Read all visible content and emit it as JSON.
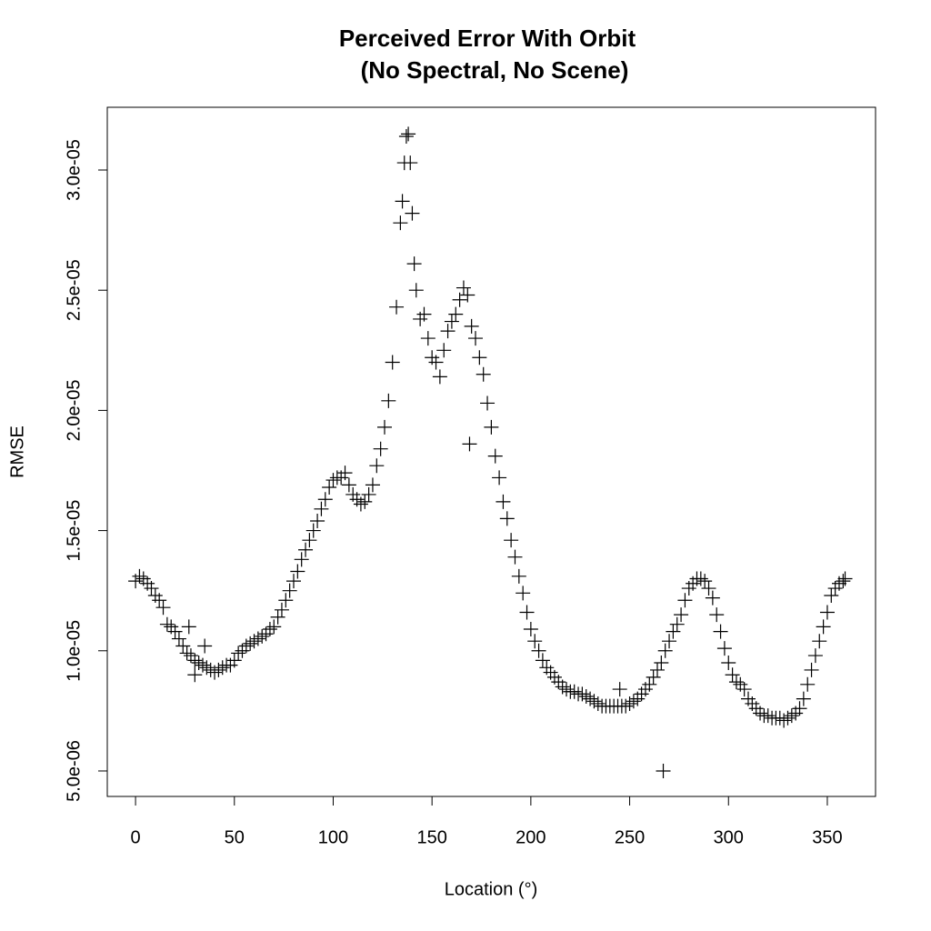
{
  "chart_data": {
    "type": "scatter",
    "title": "Perceived Error With Orbit",
    "subtitle": "(No Spectral, No Scene)",
    "x_label": "Location (°)",
    "y_label": "RMSE",
    "marker": "+",
    "color": "#000000",
    "xlim": [
      -14.3,
      374.4
    ],
    "ylim": [
      3.94e-06,
      3.261e-05
    ],
    "xticks": [
      0,
      50,
      100,
      150,
      200,
      250,
      300,
      350
    ],
    "yticks": [
      {
        "value": 5e-06,
        "label": "5.0e-06"
      },
      {
        "value": 1e-05,
        "label": "1.0e-05"
      },
      {
        "value": 1.5e-05,
        "label": "1.5e-05"
      },
      {
        "value": 2e-05,
        "label": "2.0e-05"
      },
      {
        "value": 2.5e-05,
        "label": "2.5e-05"
      },
      {
        "value": 3e-05,
        "label": "3.0e-05"
      }
    ],
    "x": [
      0,
      2,
      4,
      6,
      8,
      10,
      12,
      14,
      16,
      18,
      20,
      22,
      24,
      26,
      28,
      30,
      32,
      34,
      36,
      38,
      40,
      42,
      44,
      46,
      48,
      50,
      52,
      54,
      56,
      58,
      60,
      62,
      64,
      66,
      68,
      70,
      72,
      74,
      76,
      78,
      80,
      82,
      84,
      86,
      88,
      90,
      92,
      94,
      96,
      98,
      100,
      102,
      104,
      106,
      108,
      110,
      112,
      114,
      116,
      118,
      120,
      122,
      124,
      126,
      128,
      130,
      132,
      134,
      135,
      136,
      137,
      138,
      139,
      140,
      141,
      142,
      144,
      146,
      148,
      150,
      152,
      154,
      156,
      158,
      160,
      162,
      164,
      166,
      168,
      169,
      170,
      172,
      174,
      176,
      178,
      180,
      182,
      184,
      186,
      188,
      190,
      192,
      194,
      196,
      198,
      200,
      202,
      204,
      206,
      208,
      210,
      212,
      214,
      216,
      218,
      220,
      222,
      224,
      226,
      228,
      230,
      232,
      234,
      236,
      238,
      240,
      242,
      244,
      245,
      246,
      248,
      250,
      252,
      254,
      256,
      258,
      260,
      262,
      264,
      266,
      267,
      268,
      270,
      272,
      274,
      276,
      278,
      280,
      282,
      284,
      286,
      288,
      290,
      292,
      294,
      296,
      298,
      300,
      302,
      304,
      306,
      308,
      310,
      312,
      314,
      316,
      318,
      320,
      322,
      324,
      326,
      328,
      330,
      332,
      334,
      336,
      338,
      340,
      342,
      344,
      346,
      348,
      350,
      352,
      354,
      356,
      358,
      359,
      27,
      30,
      35
    ],
    "values": [
      1.29e-05,
      1.31e-05,
      1.3e-05,
      1.28e-05,
      1.26e-05,
      1.23e-05,
      1.21e-05,
      1.18e-05,
      1.11e-05,
      1.1e-05,
      1.08e-05,
      1.05e-05,
      1.02e-05,
      9.9e-06,
      9.8e-06,
      9.6e-06,
      9.5e-06,
      9.4e-06,
      9.3e-06,
      9.2e-06,
      9.1e-06,
      9.2e-06,
      9.3e-06,
      9.4e-06,
      9.4e-06,
      9.6e-06,
      9.9e-06,
      1e-05,
      1.02e-05,
      1.03e-05,
      1.04e-05,
      1.05e-05,
      1.06e-05,
      1.07e-05,
      1.09e-05,
      1.1e-05,
      1.14e-05,
      1.17e-05,
      1.21e-05,
      1.25e-05,
      1.29e-05,
      1.33e-05,
      1.38e-05,
      1.42e-05,
      1.46e-05,
      1.5e-05,
      1.54e-05,
      1.59e-05,
      1.63e-05,
      1.68e-05,
      1.71e-05,
      1.72e-05,
      1.72e-05,
      1.74e-05,
      1.69e-05,
      1.65e-05,
      1.63e-05,
      1.61e-05,
      1.62e-05,
      1.65e-05,
      1.69e-05,
      1.77e-05,
      1.84e-05,
      1.93e-05,
      2.04e-05,
      2.2e-05,
      2.43e-05,
      2.78e-05,
      2.87e-05,
      3.03e-05,
      3.14e-05,
      3.15e-05,
      3.03e-05,
      2.82e-05,
      2.61e-05,
      2.5e-05,
      2.38e-05,
      2.4e-05,
      2.3e-05,
      2.22e-05,
      2.2e-05,
      2.14e-05,
      2.25e-05,
      2.33e-05,
      2.37e-05,
      2.4e-05,
      2.46e-05,
      2.51e-05,
      2.48e-05,
      1.86e-05,
      2.35e-05,
      2.3e-05,
      2.22e-05,
      2.15e-05,
      2.03e-05,
      1.93e-05,
      1.81e-05,
      1.72e-05,
      1.62e-05,
      1.55e-05,
      1.46e-05,
      1.39e-05,
      1.31e-05,
      1.24e-05,
      1.16e-05,
      1.09e-05,
      1.04e-05,
      1e-05,
      9.6e-06,
      9.3e-06,
      9.1e-06,
      8.9e-06,
      8.7e-06,
      8.5e-06,
      8.4e-06,
      8.3e-06,
      8.3e-06,
      8.2e-06,
      8.2e-06,
      8.1e-06,
      8e-06,
      7.9e-06,
      7.8e-06,
      7.7e-06,
      7.7e-06,
      7.7e-06,
      7.7e-06,
      7.7e-06,
      8.4e-06,
      7.7e-06,
      7.7e-06,
      7.8e-06,
      7.9e-06,
      8e-06,
      8.2e-06,
      8.4e-06,
      8.6e-06,
      8.9e-06,
      9.2e-06,
      9.5e-06,
      5e-06,
      1e-05,
      1.04e-05,
      1.08e-05,
      1.11e-05,
      1.15e-05,
      1.21e-05,
      1.26e-05,
      1.28e-05,
      1.3e-05,
      1.3e-05,
      1.29e-05,
      1.26e-05,
      1.22e-05,
      1.15e-05,
      1.08e-05,
      1.01e-05,
      9.5e-06,
      9e-06,
      8.7e-06,
      8.6e-06,
      8.4e-06,
      8e-06,
      7.8e-06,
      7.6e-06,
      7.4e-06,
      7.3e-06,
      7.3e-06,
      7.2e-06,
      7.2e-06,
      7.2e-06,
      7.1e-06,
      7.2e-06,
      7.3e-06,
      7.4e-06,
      7.6e-06,
      8e-06,
      8.6e-06,
      9.2e-06,
      9.8e-06,
      1.04e-05,
      1.1e-05,
      1.16e-05,
      1.23e-05,
      1.26e-05,
      1.28e-05,
      1.29e-05,
      1.3e-05,
      1.1e-05,
      9e-06,
      1.02e-05
    ]
  }
}
